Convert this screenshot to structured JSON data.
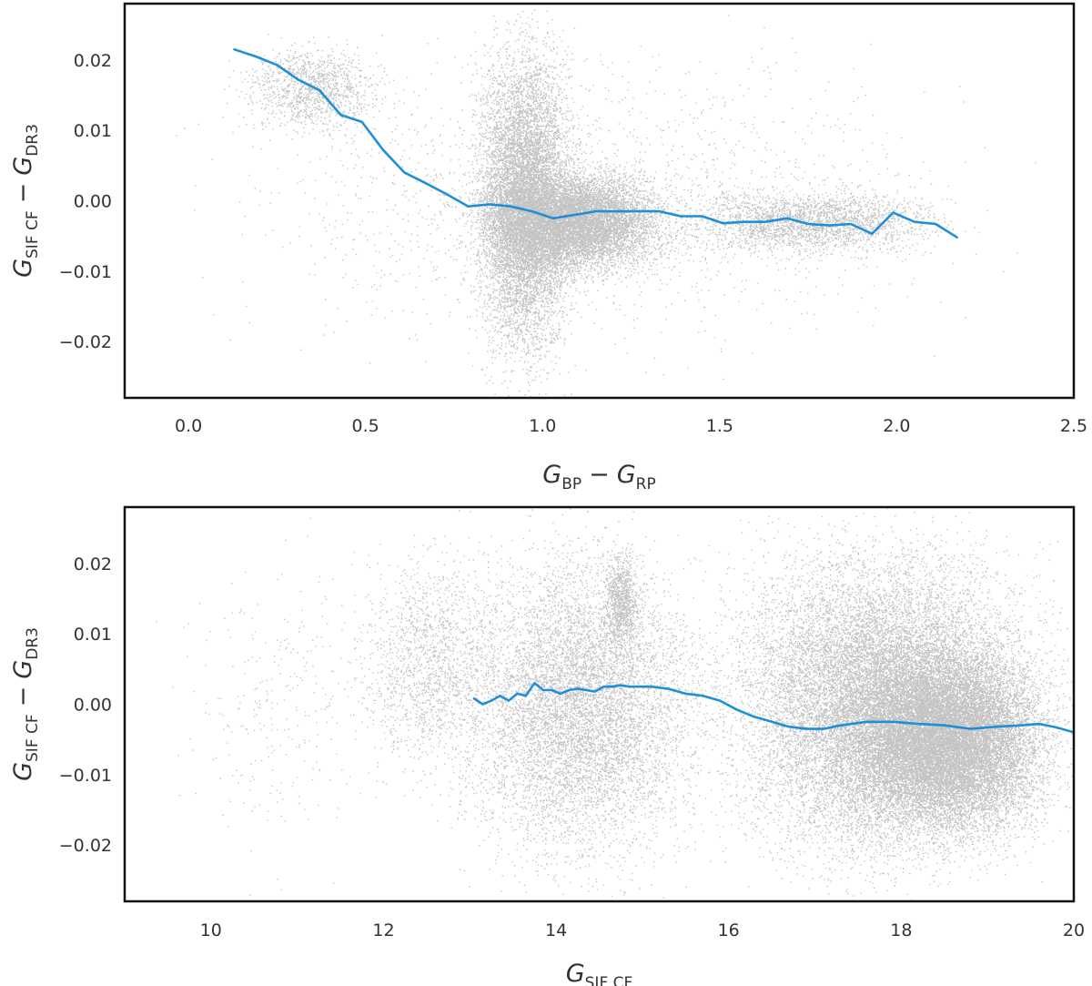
{
  "chart_data": [
    {
      "type": "scatter",
      "title": "",
      "xlabel": {
        "main": "G",
        "sub": "BP",
        "minus": "−",
        "main2": "G",
        "sub2": "RP"
      },
      "ylabel": {
        "main": "G",
        "sub": "SIF CF",
        "minus": "−",
        "main2": "G",
        "sub2": "DR3"
      },
      "xlim": [
        -0.18,
        2.5
      ],
      "ylim": [
        -0.028,
        0.028
      ],
      "x_ticks": [
        {
          "value": 0.0,
          "label": "0.0"
        },
        {
          "value": 0.5,
          "label": "0.5"
        },
        {
          "value": 1.0,
          "label": "1.0"
        },
        {
          "value": 1.5,
          "label": "1.5"
        },
        {
          "value": 2.0,
          "label": "2.0"
        },
        {
          "value": 2.5,
          "label": "2.5"
        }
      ],
      "y_ticks": [
        {
          "value": 0.02,
          "label": "0.02"
        },
        {
          "value": 0.01,
          "label": "0.01"
        },
        {
          "value": 0.0,
          "label": "0.00"
        },
        {
          "value": -0.01,
          "label": "−0.01"
        },
        {
          "value": -0.02,
          "label": "−0.02"
        }
      ],
      "grid": false,
      "point_color": "#8a8a8a",
      "line_color": "#1f8fd8",
      "scatter_density": [
        {
          "x": [
            -0.15,
            2.45
          ],
          "y": [
            -0.027,
            0.027
          ],
          "count": 1800,
          "opacity": 0.45
        },
        {
          "x": [
            0.1,
            0.6
          ],
          "y": [
            0.008,
            0.024
          ],
          "count": 1200,
          "opacity": 0.5
        },
        {
          "x": [
            0.78,
            1.12
          ],
          "y": [
            -0.028,
            0.028
          ],
          "count": 9000,
          "opacity": 0.55
        },
        {
          "x": [
            0.78,
            1.4
          ],
          "y": [
            -0.012,
            0.006
          ],
          "count": 9000,
          "opacity": 0.65
        },
        {
          "x": [
            1.3,
            2.2
          ],
          "y": [
            -0.009,
            0.003
          ],
          "count": 2500,
          "opacity": 0.4
        }
      ],
      "series": [
        {
          "x": [
            0.13,
            0.19,
            0.25,
            0.31,
            0.37,
            0.43,
            0.49,
            0.55,
            0.61,
            0.67,
            0.73,
            0.79,
            0.85,
            0.91,
            0.97,
            1.03,
            1.09,
            1.15,
            1.21,
            1.27,
            1.33,
            1.39,
            1.45,
            1.51,
            1.57,
            1.63,
            1.69,
            1.75,
            1.81,
            1.87,
            1.93,
            1.99,
            2.05,
            2.11,
            2.17
          ],
          "y": [
            0.0215,
            0.0205,
            0.0193,
            0.0172,
            0.0157,
            0.0122,
            0.0112,
            0.0072,
            0.004,
            0.0025,
            0.0009,
            -0.0008,
            -0.0005,
            -0.0008,
            -0.0015,
            -0.0025,
            -0.002,
            -0.0015,
            -0.0015,
            -0.0015,
            -0.0015,
            -0.0022,
            -0.0022,
            -0.0032,
            -0.003,
            -0.003,
            -0.0025,
            -0.0033,
            -0.0035,
            -0.0033,
            -0.0047,
            -0.0017,
            -0.003,
            -0.0033,
            -0.0052
          ]
        }
      ]
    },
    {
      "type": "scatter",
      "title": "",
      "xlabel": {
        "main": "G",
        "sub": "SIF CF"
      },
      "ylabel": {
        "main": "G",
        "sub": "SIF CF",
        "minus": "−",
        "main2": "G",
        "sub2": "DR3"
      },
      "xlim": [
        9.0,
        20.0
      ],
      "ylim": [
        -0.028,
        0.028
      ],
      "x_ticks": [
        {
          "value": 10,
          "label": "10"
        },
        {
          "value": 12,
          "label": "12"
        },
        {
          "value": 14,
          "label": "14"
        },
        {
          "value": 16,
          "label": "16"
        },
        {
          "value": 18,
          "label": "18"
        },
        {
          "value": 20,
          "label": "20"
        }
      ],
      "y_ticks": [
        {
          "value": 0.02,
          "label": "0.02"
        },
        {
          "value": 0.01,
          "label": "0.01"
        },
        {
          "value": 0.0,
          "label": "0.00"
        },
        {
          "value": -0.01,
          "label": "−0.01"
        },
        {
          "value": -0.02,
          "label": "−0.02"
        }
      ],
      "grid": false,
      "point_color": "#8a8a8a",
      "line_color": "#1f8fd8",
      "scatter_density": [
        {
          "x": [
            9.2,
            12.5
          ],
          "y": [
            -0.027,
            0.027
          ],
          "count": 300,
          "opacity": 0.45
        },
        {
          "x": [
            11.5,
            13.5
          ],
          "y": [
            -0.015,
            0.026
          ],
          "count": 1500,
          "opacity": 0.45
        },
        {
          "x": [
            12.5,
            16.0
          ],
          "y": [
            -0.028,
            0.028
          ],
          "count": 8000,
          "opacity": 0.5
        },
        {
          "x": [
            14.5,
            15.0
          ],
          "y": [
            0.005,
            0.024
          ],
          "count": 900,
          "opacity": 0.55
        },
        {
          "x": [
            15.5,
            20.0
          ],
          "y": [
            -0.028,
            0.028
          ],
          "count": 16000,
          "opacity": 0.55
        },
        {
          "x": [
            17.0,
            20.0
          ],
          "y": [
            -0.022,
            0.012
          ],
          "count": 16000,
          "opacity": 0.7
        }
      ],
      "series": [
        {
          "x": [
            13.05,
            13.15,
            13.25,
            13.35,
            13.45,
            13.55,
            13.65,
            13.75,
            13.85,
            13.95,
            14.05,
            14.15,
            14.25,
            14.35,
            14.45,
            14.55,
            14.65,
            14.75,
            14.85,
            14.95,
            15.1,
            15.3,
            15.5,
            15.7,
            15.9,
            16.1,
            16.3,
            16.5,
            16.7,
            16.9,
            17.1,
            17.3,
            17.6,
            17.9,
            18.2,
            18.5,
            18.8,
            19.1,
            19.4,
            19.6,
            19.8,
            20.0
          ],
          "y": [
            0.0008,
            0.0,
            0.0005,
            0.0012,
            0.0005,
            0.0015,
            0.0012,
            0.003,
            0.002,
            0.002,
            0.0015,
            0.002,
            0.0022,
            0.002,
            0.0018,
            0.0025,
            0.0025,
            0.0027,
            0.0025,
            0.0025,
            0.0025,
            0.0022,
            0.0015,
            0.0012,
            0.0005,
            -0.0008,
            -0.0018,
            -0.0025,
            -0.0032,
            -0.0035,
            -0.0035,
            -0.003,
            -0.0025,
            -0.0025,
            -0.0028,
            -0.003,
            -0.0035,
            -0.0032,
            -0.003,
            -0.0028,
            -0.0033,
            -0.004
          ]
        }
      ]
    }
  ]
}
